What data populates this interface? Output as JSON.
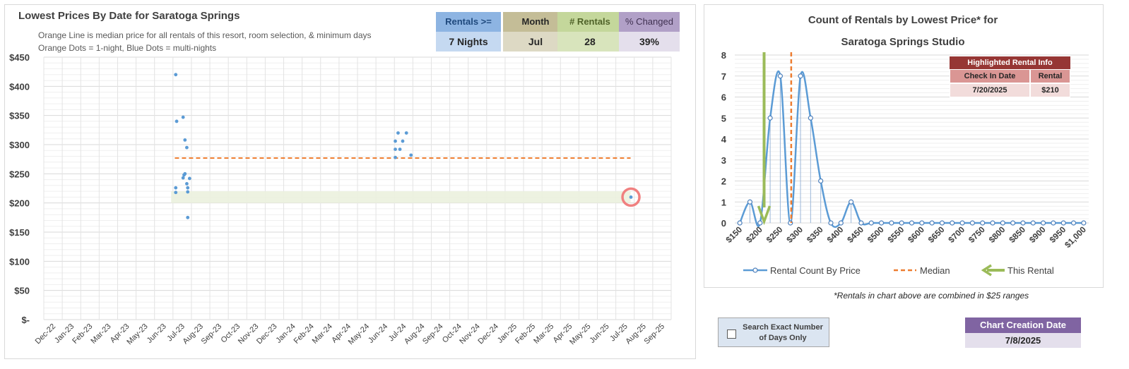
{
  "left": {
    "title": "Lowest Prices By Date for Saratoga Springs",
    "subtitle1": "Orange Line is median price for all rentals of this resort, room selection, & minimum days",
    "subtitle2": "Orange Dots = 1-night, Blue Dots = multi-nights"
  },
  "stats": [
    {
      "label": "Rentals >=",
      "value": "7 Nights",
      "head_bg": "#8db4e2",
      "val_bg": "#c5d9f1",
      "head_color": "#1f497d"
    },
    {
      "label": "Month",
      "value": "Jul",
      "head_bg": "#c4bd97",
      "val_bg": "#ddd9c4",
      "head_color": "#262626"
    },
    {
      "label": "# Rentals",
      "value": "28",
      "head_bg": "#c4d79b",
      "val_bg": "#d8e4bc",
      "head_color": "#4f6228"
    },
    {
      "label": "% Changed",
      "value": "39%",
      "head_bg": "#b1a0c7",
      "val_bg": "#e4dfec",
      "head_color": "#403151"
    }
  ],
  "right": {
    "title1": "Count of Rentals by Lowest Price* for",
    "title2": "Saratoga Springs Studio",
    "footnote": "*Rentals in chart above are combined in $25 ranges"
  },
  "highlight": {
    "title": "Highlighted Rental Info",
    "col1_label": "Check In Date",
    "col2_label": "Rental Price",
    "check_in": "7/20/2025",
    "price": "$210"
  },
  "checkbox": {
    "label": "Search Exact Number of Days Only"
  },
  "creation": {
    "label": "Chart Creation Date",
    "value": "7/8/2025"
  },
  "chart_data": [
    {
      "type": "scatter",
      "title": "Lowest Prices By Date for Saratoga Springs",
      "x_categories": [
        "Dec-22",
        "Jan-23",
        "Feb-23",
        "Mar-23",
        "Apr-23",
        "May-23",
        "Jun-23",
        "Jul-23",
        "Aug-23",
        "Sep-23",
        "Oct-23",
        "Nov-23",
        "Dec-23",
        "Jan-24",
        "Feb-24",
        "Mar-24",
        "Apr-24",
        "May-24",
        "Jun-24",
        "Jul-24",
        "Aug-24",
        "Sep-24",
        "Oct-24",
        "Nov-24",
        "Dec-24",
        "Jan-25",
        "Feb-25",
        "Mar-25",
        "Apr-25",
        "May-25",
        "Jun-25",
        "Jul-25",
        "Aug-25",
        "Sep-25"
      ],
      "ylim": [
        0,
        450
      ],
      "y_ticks": [
        0,
        50,
        100,
        150,
        200,
        250,
        300,
        350,
        400,
        450
      ],
      "y_tick_labels": [
        "$-",
        "$50",
        "$100",
        "$150",
        "$200",
        "$250",
        "$300",
        "$350",
        "$400",
        "$450"
      ],
      "median": 277,
      "median_x_range": [
        7.1,
        31.8
      ],
      "band": {
        "y_range": [
          200,
          220
        ],
        "x_range": [
          6.9,
          31.8
        ]
      },
      "points": [
        {
          "x": 7.15,
          "y": 420
        },
        {
          "x": 7.2,
          "y": 340
        },
        {
          "x": 7.15,
          "y": 226
        },
        {
          "x": 7.15,
          "y": 218
        },
        {
          "x": 7.55,
          "y": 347
        },
        {
          "x": 7.6,
          "y": 248
        },
        {
          "x": 7.55,
          "y": 243
        },
        {
          "x": 7.65,
          "y": 308
        },
        {
          "x": 7.75,
          "y": 295
        },
        {
          "x": 7.65,
          "y": 250
        },
        {
          "x": 7.75,
          "y": 233
        },
        {
          "x": 7.8,
          "y": 226
        },
        {
          "x": 7.8,
          "y": 219
        },
        {
          "x": 7.9,
          "y": 242
        },
        {
          "x": 7.8,
          "y": 175
        },
        {
          "x": 19.05,
          "y": 306
        },
        {
          "x": 19.05,
          "y": 292
        },
        {
          "x": 19.05,
          "y": 278
        },
        {
          "x": 19.2,
          "y": 320
        },
        {
          "x": 19.3,
          "y": 292
        },
        {
          "x": 19.45,
          "y": 306
        },
        {
          "x": 19.65,
          "y": 320
        },
        {
          "x": 19.9,
          "y": 282
        },
        {
          "x": 31.82,
          "y": 210
        }
      ],
      "highlight_point": {
        "x": 31.82,
        "y": 210
      }
    },
    {
      "type": "line",
      "title": "Count of Rentals by Lowest Price* for Saratoga Springs Studio",
      "x": [
        150,
        175,
        200,
        225,
        250,
        275,
        300,
        325,
        350,
        375,
        400,
        425,
        450,
        475,
        500,
        525,
        550,
        575,
        600,
        625,
        650,
        675,
        700,
        725,
        750,
        775,
        800,
        825,
        850,
        875,
        900,
        925,
        950,
        975,
        1000
      ],
      "x_tick_labels": [
        "$150",
        "$200",
        "$250",
        "$300",
        "$350",
        "$400",
        "$450",
        "$500",
        "$550",
        "$600",
        "$650",
        "$700",
        "$750",
        "$800",
        "$850",
        "$900",
        "$950",
        "$1,000"
      ],
      "x_tick_values": [
        150,
        200,
        250,
        300,
        350,
        400,
        450,
        500,
        550,
        600,
        650,
        700,
        750,
        800,
        850,
        900,
        950,
        1000
      ],
      "ylim": [
        0,
        8
      ],
      "y_ticks": [
        0,
        1,
        2,
        3,
        4,
        5,
        6,
        7,
        8
      ],
      "series": [
        {
          "name": "Rental Count By Price",
          "values": [
            0,
            1,
            0,
            5,
            7,
            0,
            7,
            5,
            2,
            0,
            0,
            1,
            0,
            0,
            0,
            0,
            0,
            0,
            0,
            0,
            0,
            0,
            0,
            0,
            0,
            0,
            0,
            0,
            0,
            0,
            0,
            0,
            0,
            0,
            0
          ]
        }
      ],
      "median": 277,
      "this_rental": 210,
      "legend": [
        "Rental Count By Price",
        "Median",
        "This Rental"
      ],
      "legend_position": "bottom"
    }
  ],
  "colors": {
    "blue": "#5b9bd5",
    "orange": "#ed7d31",
    "green_arrow": "#9bbb59",
    "band": "#ebf1de",
    "highlight_ring": "#f08080"
  }
}
